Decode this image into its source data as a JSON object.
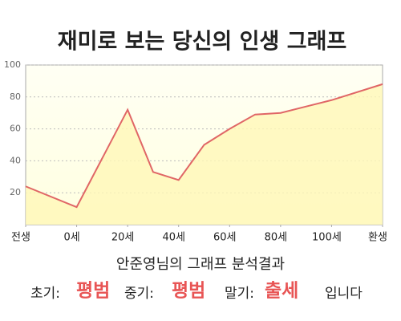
{
  "chart_data": {
    "type": "area",
    "title": "재미로 보는 당신의 인생 그래프",
    "x": [
      -20,
      0,
      20,
      30,
      40,
      50,
      60,
      70,
      80,
      100,
      120
    ],
    "values": [
      24,
      11,
      72,
      33,
      28,
      50,
      60,
      69,
      70,
      78,
      88
    ],
    "color": "#e06666",
    "fill": "#fff7b8",
    "xlim": [
      -20,
      120
    ],
    "xticks": [
      {
        "value": -20,
        "label": "전생"
      },
      {
        "value": 0,
        "label": "0세"
      },
      {
        "value": 20,
        "label": "20세"
      },
      {
        "value": 40,
        "label": "40세"
      },
      {
        "value": 60,
        "label": "60세"
      },
      {
        "value": 80,
        "label": "80세"
      },
      {
        "value": 100,
        "label": "100세"
      },
      {
        "value": 120,
        "label": "환생"
      }
    ],
    "ylim": [
      0,
      100
    ],
    "yticks": [
      20,
      40,
      60,
      80,
      100
    ],
    "grid": true,
    "result": {
      "heading": "안준영님의 그래프 분석결과",
      "items": [
        {
          "label": "초기:",
          "value": "평범"
        },
        {
          "label": "중기:",
          "value": "평범"
        },
        {
          "label": "말기:",
          "value": "출세"
        }
      ],
      "ending": "입니다"
    }
  }
}
